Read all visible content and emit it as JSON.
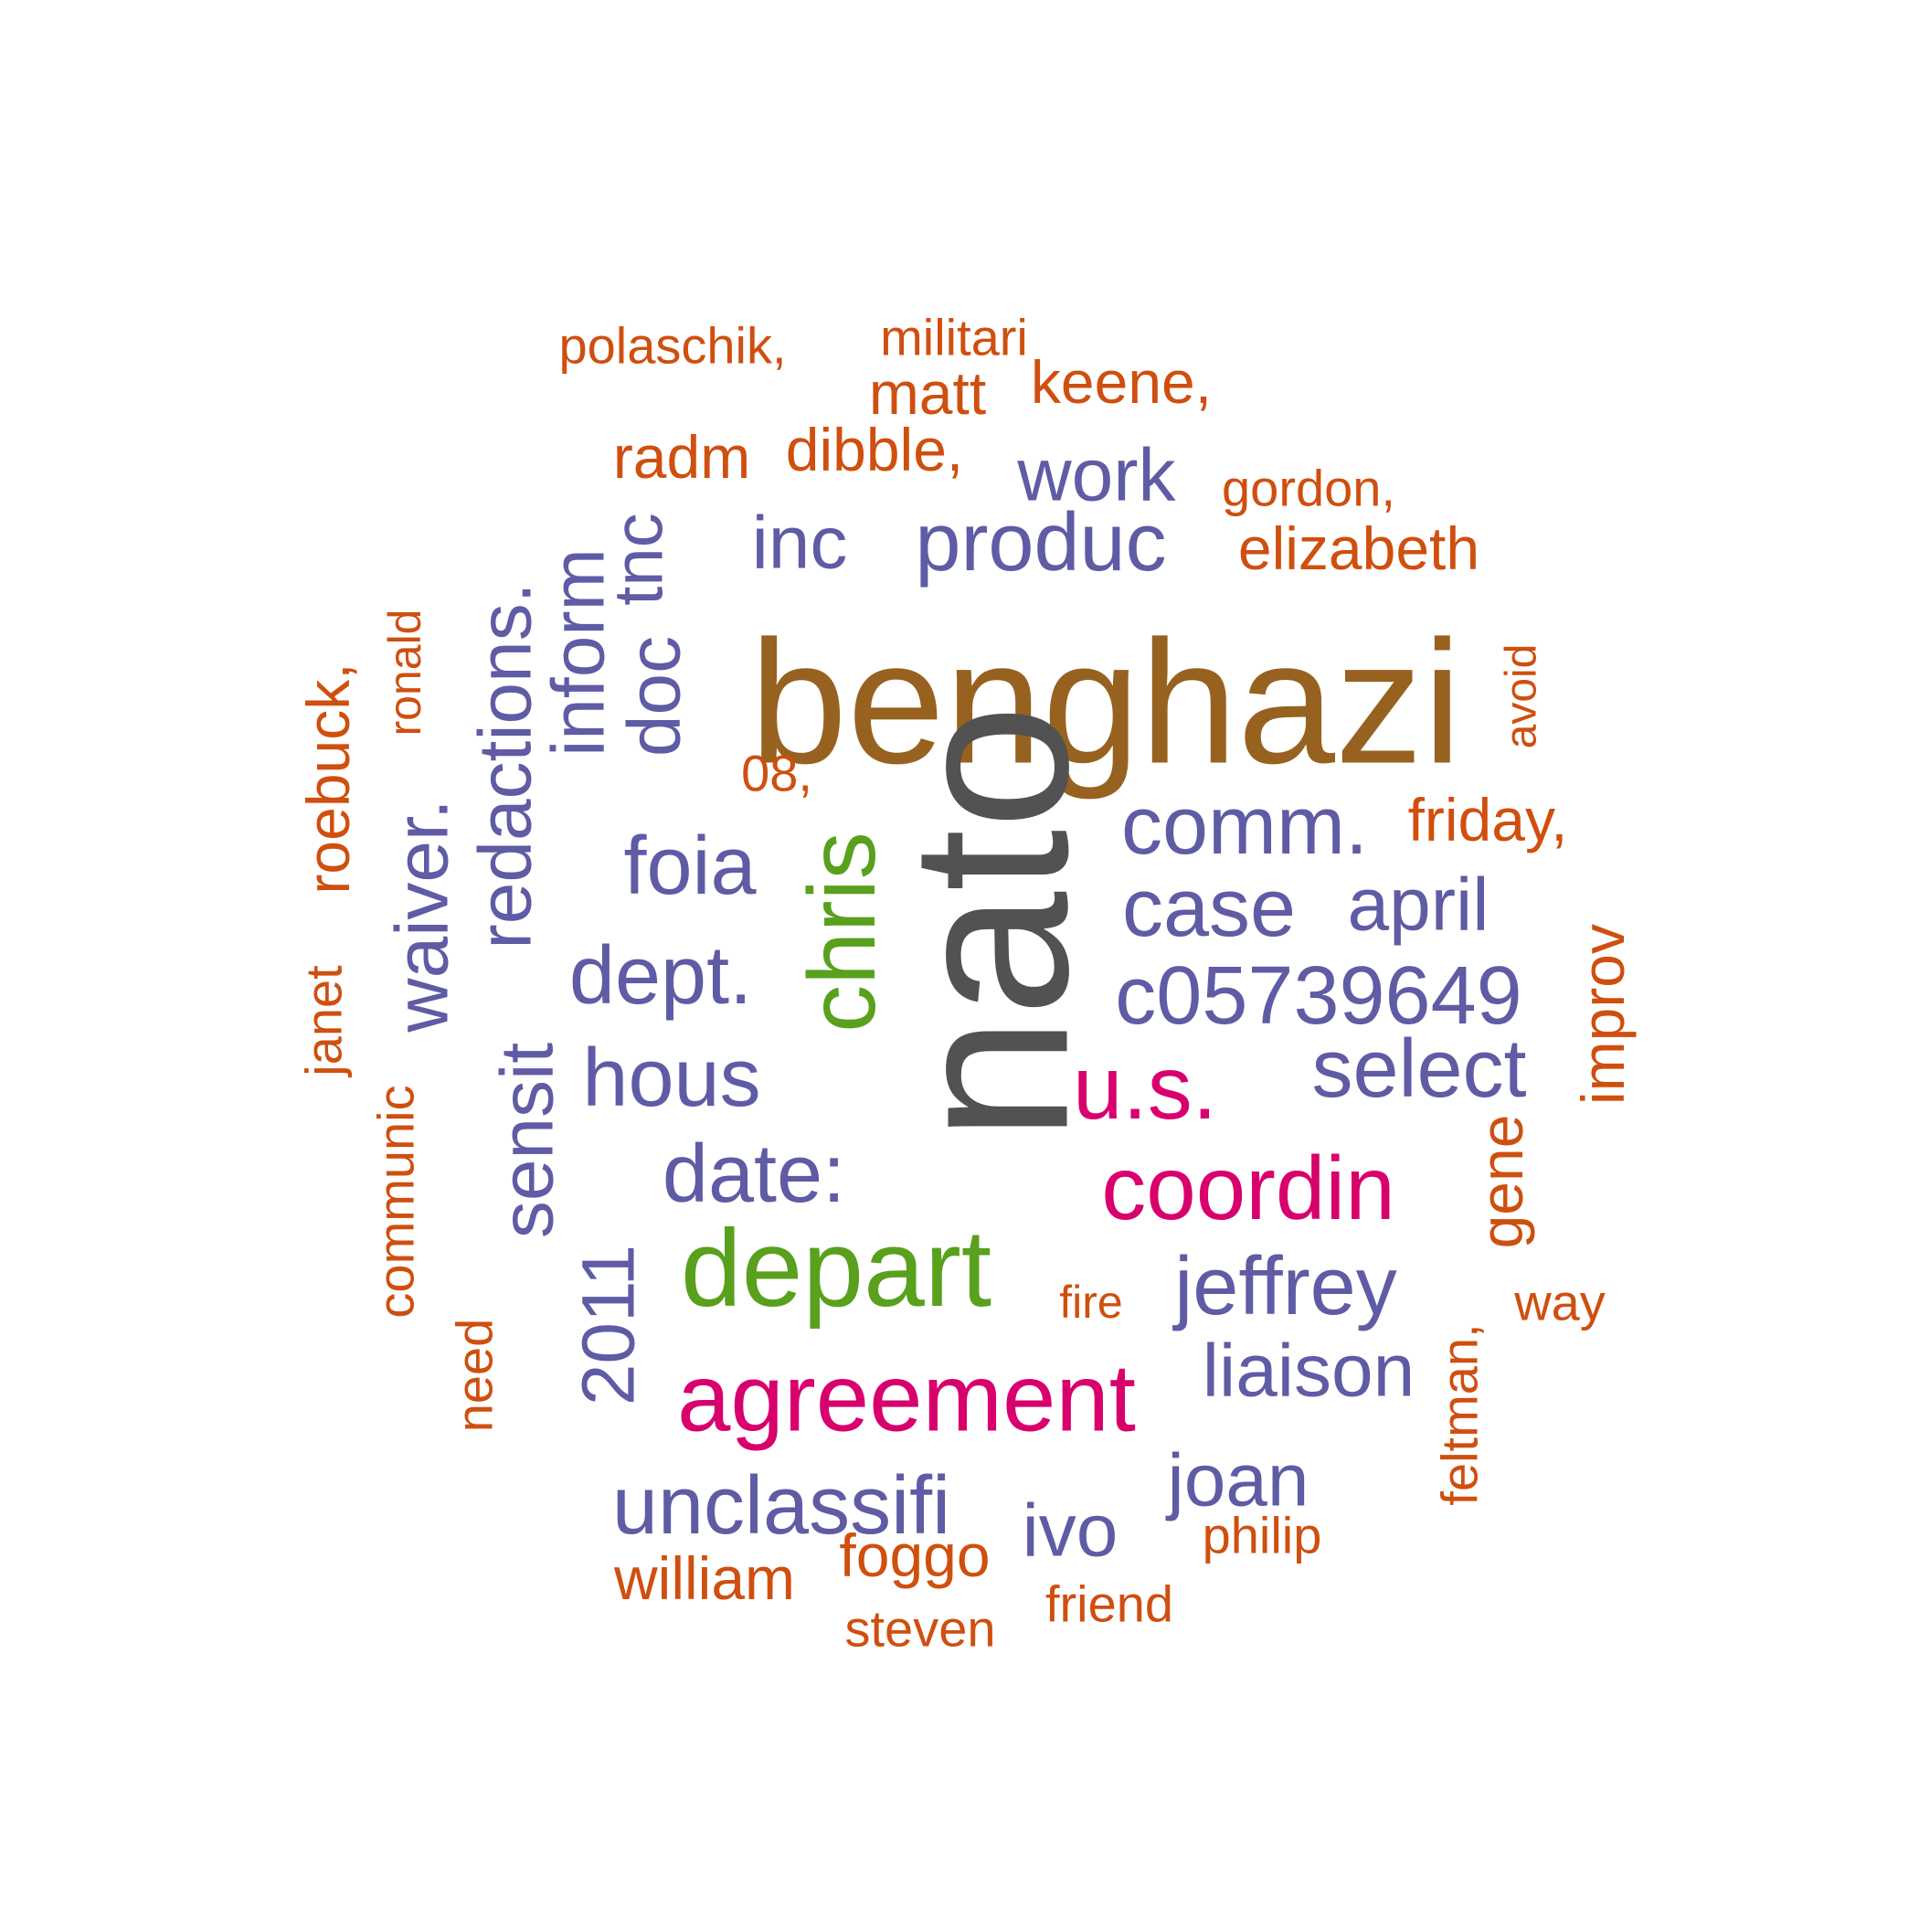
{
  "colors": {
    "brown": "#97621f",
    "gray": "#525252",
    "green": "#59a01d",
    "magenta": "#d8006d",
    "purple": "#5f5ba4",
    "orange": "#cf4f0f"
  },
  "words": [
    {
      "text": "benghazi",
      "color": "brown"
    },
    {
      "text": "nato",
      "color": "gray"
    },
    {
      "text": "chris",
      "color": "green"
    },
    {
      "text": "depart",
      "color": "green"
    },
    {
      "text": "agreement",
      "color": "magenta"
    },
    {
      "text": "coordin",
      "color": "magenta"
    },
    {
      "text": "u.s.",
      "color": "magenta"
    },
    {
      "text": "c05739649",
      "color": "purple"
    },
    {
      "text": "produc",
      "color": "purple"
    },
    {
      "text": "inc",
      "color": "purple"
    },
    {
      "text": "work",
      "color": "purple"
    },
    {
      "text": "comm.",
      "color": "purple"
    },
    {
      "text": "case",
      "color": "purple"
    },
    {
      "text": "april",
      "color": "purple"
    },
    {
      "text": "select",
      "color": "purple"
    },
    {
      "text": "jeffrey",
      "color": "purple"
    },
    {
      "text": "liaison",
      "color": "purple"
    },
    {
      "text": "joan",
      "color": "purple"
    },
    {
      "text": "ivo",
      "color": "purple"
    },
    {
      "text": "unclassifi",
      "color": "purple"
    },
    {
      "text": "date:",
      "color": "purple"
    },
    {
      "text": "hous",
      "color": "purple"
    },
    {
      "text": "dept.",
      "color": "purple"
    },
    {
      "text": "foia",
      "color": "purple"
    },
    {
      "text": "doc",
      "color": "purple"
    },
    {
      "text": "tnc",
      "color": "purple"
    },
    {
      "text": "inform",
      "color": "purple"
    },
    {
      "text": "redactions.",
      "color": "purple"
    },
    {
      "text": "waiver.",
      "color": "purple"
    },
    {
      "text": "sensit",
      "color": "purple"
    },
    {
      "text": "2011",
      "color": "purple"
    },
    {
      "text": "polaschik,",
      "color": "orange"
    },
    {
      "text": "militari",
      "color": "orange"
    },
    {
      "text": "matt",
      "color": "orange"
    },
    {
      "text": "keene,",
      "color": "orange"
    },
    {
      "text": "radm",
      "color": "orange"
    },
    {
      "text": "dibble,",
      "color": "orange"
    },
    {
      "text": "gordon,",
      "color": "orange"
    },
    {
      "text": "elizabeth",
      "color": "orange"
    },
    {
      "text": "avoid",
      "color": "orange"
    },
    {
      "text": "friday,",
      "color": "orange"
    },
    {
      "text": "08,",
      "color": "orange"
    },
    {
      "text": "ronald",
      "color": "orange"
    },
    {
      "text": "roebuck,",
      "color": "orange"
    },
    {
      "text": "janet",
      "color": "orange"
    },
    {
      "text": "improv",
      "color": "orange"
    },
    {
      "text": "communic",
      "color": "orange"
    },
    {
      "text": "need",
      "color": "orange"
    },
    {
      "text": "gene",
      "color": "orange"
    },
    {
      "text": "fire",
      "color": "orange"
    },
    {
      "text": "way",
      "color": "orange"
    },
    {
      "text": "feltman,",
      "color": "orange"
    },
    {
      "text": "philip",
      "color": "orange"
    },
    {
      "text": "william",
      "color": "orange"
    },
    {
      "text": "foggo",
      "color": "orange"
    },
    {
      "text": "friend",
      "color": "orange"
    },
    {
      "text": "steven",
      "color": "orange"
    }
  ]
}
